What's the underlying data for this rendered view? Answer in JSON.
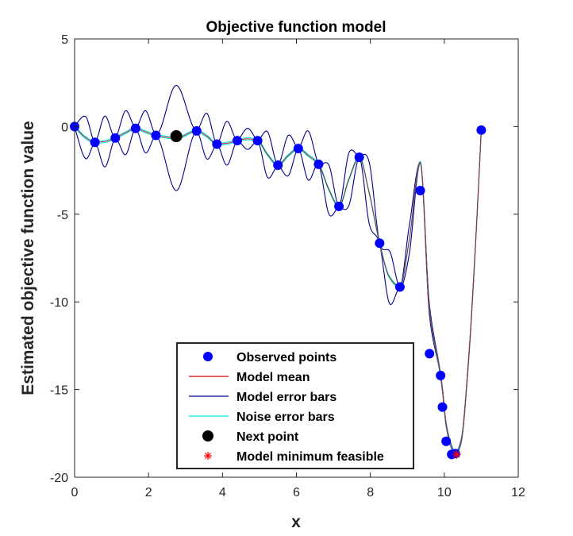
{
  "chart_data": {
    "type": "line",
    "title": "Objective function model",
    "xlabel": "x",
    "ylabel": "Estimated objective function value",
    "xlim": [
      0,
      12
    ],
    "ylim": [
      -20,
      5
    ],
    "xticks": [
      "0",
      "2",
      "4",
      "6",
      "8",
      "10",
      "12"
    ],
    "yticks": [
      "5",
      "0",
      "-5",
      "-10",
      "-15",
      "-20"
    ],
    "grid": false,
    "legend_position": "bottom-center",
    "legend": [
      {
        "label": "Observed points",
        "symbol": "blue-dot",
        "color": "#0000ff"
      },
      {
        "label": "Model mean",
        "symbol": "line",
        "color": "#cc0000"
      },
      {
        "label": "Model error bars",
        "symbol": "line",
        "color": "#00008b"
      },
      {
        "label": "Noise error bars",
        "symbol": "line",
        "color": "#00e5e5"
      },
      {
        "label": "Next point",
        "symbol": "black-dot",
        "color": "#000000"
      },
      {
        "label": "Model minimum feasible",
        "symbol": "red-asterisk",
        "color": "#ff0000"
      }
    ],
    "observed_points": {
      "x": [
        0.0,
        0.55,
        1.1,
        1.65,
        2.2,
        3.3,
        3.85,
        4.4,
        4.95,
        5.5,
        6.05,
        6.6,
        7.15,
        7.7,
        8.25,
        8.8,
        9.35,
        9.6,
        9.9,
        9.95,
        10.05,
        10.2,
        10.3,
        11.0
      ],
      "y": [
        0.0,
        -0.9,
        -0.65,
        -0.1,
        -0.5,
        -0.25,
        -1.0,
        -0.8,
        -0.8,
        -2.2,
        -1.25,
        -2.15,
        -4.55,
        -1.75,
        -6.65,
        -9.15,
        -3.65,
        -12.95,
        -14.2,
        -16.0,
        -17.95,
        -18.7,
        -18.65,
        -0.2
      ]
    },
    "next_point": {
      "x": 2.75,
      "y": -0.55
    },
    "model_minimum_feasible": {
      "x": 10.33,
      "y": -18.7
    },
    "error_bar_amplitude": {
      "x": [
        0.0,
        0.3,
        0.55,
        0.82,
        1.1,
        1.38,
        1.65,
        1.92,
        2.2,
        2.75,
        3.3,
        3.58,
        3.85,
        4.12,
        4.4,
        4.68,
        4.95,
        5.22,
        5.5,
        5.78,
        6.05,
        6.32,
        6.6,
        6.88,
        7.15,
        7.42,
        7.7,
        7.97,
        8.25,
        8.52,
        8.8,
        9.05,
        9.35,
        9.6,
        9.9,
        10.05,
        10.3,
        10.65,
        11.0
      ],
      "values": [
        0.05,
        1.2,
        0.05,
        1.45,
        0.05,
        1.25,
        0.05,
        1.2,
        0.05,
        3.0,
        0.05,
        1.3,
        0.05,
        1.25,
        0.05,
        0.6,
        0.05,
        1.3,
        0.05,
        1.15,
        0.05,
        1.4,
        0.05,
        1.4,
        0.05,
        1.5,
        0.05,
        1.75,
        0.05,
        1.5,
        0.05,
        0.8,
        0.05,
        0.3,
        0.1,
        0.1,
        0.1,
        0.1,
        0.05
      ]
    },
    "mean_curve": {
      "x": [
        0.0,
        0.28,
        0.55,
        0.82,
        1.1,
        1.38,
        1.65,
        1.92,
        2.2,
        2.75,
        3.3,
        3.58,
        3.85,
        4.12,
        4.4,
        4.68,
        4.95,
        5.22,
        5.5,
        5.78,
        6.05,
        6.32,
        6.6,
        6.88,
        7.15,
        7.42,
        7.7,
        7.97,
        8.25,
        8.52,
        8.8,
        9.05,
        9.35,
        9.6,
        9.9,
        9.95,
        10.05,
        10.2,
        10.3,
        10.45,
        10.65,
        10.85,
        11.0
      ],
      "values": [
        0.0,
        -0.6,
        -0.9,
        -0.85,
        -0.65,
        -0.35,
        -0.1,
        -0.3,
        -0.5,
        -0.65,
        -0.25,
        -0.55,
        -1.0,
        -0.95,
        -0.8,
        -0.7,
        -0.8,
        -1.6,
        -2.2,
        -1.65,
        -1.25,
        -1.65,
        -2.15,
        -3.6,
        -4.55,
        -3.0,
        -1.75,
        -3.8,
        -6.65,
        -8.6,
        -9.15,
        -6.5,
        -2.05,
        -10.5,
        -14.2,
        -15.0,
        -17.0,
        -18.3,
        -18.7,
        -18.0,
        -13.5,
        -6.5,
        -0.2
      ]
    }
  }
}
